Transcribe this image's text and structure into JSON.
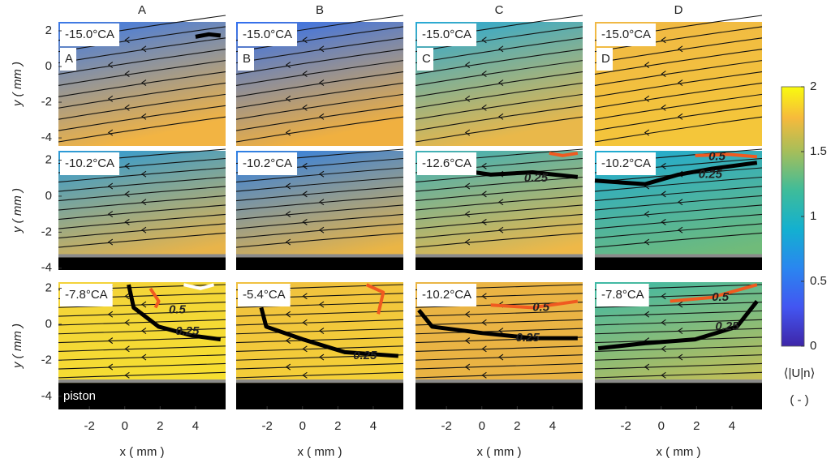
{
  "figure": {
    "columns": [
      "A",
      "B",
      "C",
      "D"
    ],
    "x_label": "x ( mm )",
    "y_label": "y ( mm )",
    "xlim": [
      -3.75,
      5.7
    ],
    "xticks": [
      -2,
      0,
      2,
      4
    ],
    "yticks": [
      -4,
      -2,
      0,
      2
    ],
    "rows": [
      {
        "ylim": [
          -4.45,
          2.5
        ]
      },
      {
        "ylim": [
          -4.1,
          2.52
        ],
        "piston_y": -3.4
      },
      {
        "ylim": [
          -4.73,
          2.34
        ],
        "piston_y": -3.25
      }
    ],
    "panels": [
      {
        "label": "-15.0°CA",
        "letter": "A",
        "contours": []
      },
      {
        "label": "-15.0°CA",
        "letter": "B",
        "contours": []
      },
      {
        "label": "-15.0°CA",
        "letter": "C",
        "contours": []
      },
      {
        "label": "-15.0°CA",
        "letter": "D",
        "contours": []
      },
      {
        "label": "-10.2°CA",
        "contours": []
      },
      {
        "label": "-10.2°CA",
        "contours": []
      },
      {
        "label": "-12.6°CA",
        "contours": [
          "0.25"
        ]
      },
      {
        "label": "-10.2°CA",
        "contours": [
          "0.5",
          "0.25"
        ]
      },
      {
        "label": "-7.8°CA",
        "contours": [
          "0.5",
          "0.25"
        ],
        "note": "piston"
      },
      {
        "label": "-5.4°CA",
        "contours": [
          "0.25"
        ]
      },
      {
        "label": "-10.2°CA",
        "contours": [
          "0.5",
          "0.25"
        ]
      },
      {
        "label": "-7.8°CA",
        "contours": [
          "0.5",
          "0.25"
        ]
      }
    ],
    "colorbar": {
      "label": "⟨|U|n⟩",
      "unit": "( - )",
      "lim": [
        0,
        2
      ],
      "ticks": [
        0,
        0.5,
        1,
        {
          "value": 1.5,
          "label": "1.5"
        },
        2
      ]
    }
  }
}
